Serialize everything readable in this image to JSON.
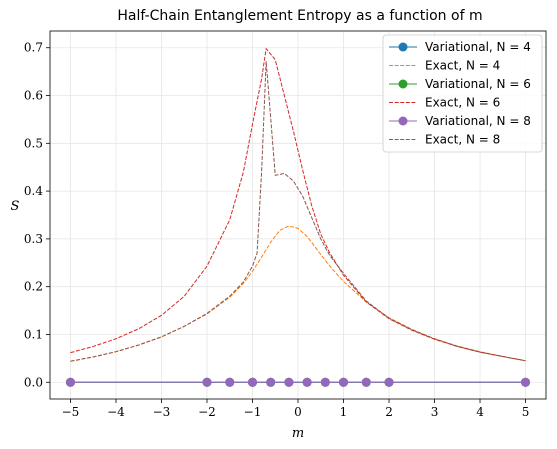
{
  "chart_data": {
    "type": "line",
    "title": "Half-Chain Entanglement Entropy as a function of m",
    "xlabel": "m",
    "ylabel": "S",
    "xlim": [
      -5.45,
      5.45
    ],
    "ylim": [
      -0.035,
      0.735
    ],
    "xticks": [
      -5,
      -4,
      -3,
      -2,
      -1,
      0,
      1,
      2,
      3,
      4,
      5
    ],
    "xtick_labels": [
      "−5",
      "−4",
      "−3",
      "−2",
      "−1",
      "0",
      "1",
      "2",
      "3",
      "4",
      "5"
    ],
    "yticks": [
      0.0,
      0.1,
      0.2,
      0.3,
      0.4,
      0.5,
      0.6,
      0.7
    ],
    "ytick_labels": [
      "0.0",
      "0.1",
      "0.2",
      "0.3",
      "0.4",
      "0.5",
      "0.6",
      "0.7"
    ],
    "grid": true,
    "legend_position": "top-right",
    "colors": {
      "blue": "#1f77b4",
      "orange": "#ff7f0e",
      "green": "#2ca02c",
      "red": "#d62728",
      "purple": "#9467bd",
      "brown": "#8c564b"
    },
    "series": [
      {
        "name": "Variational, N = 4",
        "style": "solid-marker",
        "color": "#1f77b4",
        "x": [
          -5,
          -2,
          -1.5,
          -1,
          -0.6,
          -0.2,
          0.2,
          0.6,
          1,
          1.5,
          2,
          5
        ],
        "y": [
          0,
          0,
          0,
          0,
          0,
          0,
          0,
          0,
          0,
          0,
          0,
          0
        ]
      },
      {
        "name": "Exact, N = 4",
        "style": "dashed",
        "color": "#ff7f0e",
        "x": [
          -5,
          -4.5,
          -4,
          -3.5,
          -3,
          -2.5,
          -2,
          -1.5,
          -1.2,
          -1,
          -0.8,
          -0.6,
          -0.4,
          -0.2,
          0,
          0.2,
          0.4,
          0.6,
          0.8,
          1,
          1.5,
          2,
          2.5,
          3,
          3.5,
          4,
          4.5,
          5
        ],
        "y": [
          0.044,
          0.053,
          0.064,
          0.078,
          0.095,
          0.117,
          0.143,
          0.178,
          0.207,
          0.232,
          0.262,
          0.293,
          0.318,
          0.327,
          0.322,
          0.305,
          0.28,
          0.255,
          0.232,
          0.211,
          0.168,
          0.135,
          0.111,
          0.091,
          0.076,
          0.064,
          0.054,
          0.045
        ]
      },
      {
        "name": "Variational, N = 6",
        "style": "solid-marker",
        "color": "#2ca02c",
        "x": [
          -5,
          -2,
          -1.5,
          -1,
          -0.6,
          -0.2,
          0.2,
          0.6,
          1,
          1.5,
          2,
          5
        ],
        "y": [
          0,
          0,
          0,
          0,
          0,
          0,
          0,
          0,
          0,
          0,
          0,
          0
        ]
      },
      {
        "name": "Exact, N = 6",
        "style": "dashed",
        "color": "#d62728",
        "x": [
          -5,
          -4.5,
          -4,
          -3.5,
          -3,
          -2.5,
          -2,
          -1.5,
          -1.2,
          -1,
          -0.8,
          -0.7,
          -0.5,
          -0.3,
          -0.1,
          0.1,
          0.3,
          0.5,
          0.7,
          1,
          1.5,
          2,
          2.5,
          3,
          3.5,
          4,
          4.5,
          5
        ],
        "y": [
          0.062,
          0.075,
          0.091,
          0.112,
          0.14,
          0.18,
          0.243,
          0.34,
          0.44,
          0.54,
          0.635,
          0.698,
          0.675,
          0.6,
          0.525,
          0.445,
          0.37,
          0.31,
          0.27,
          0.224,
          0.168,
          0.133,
          0.109,
          0.09,
          0.075,
          0.063,
          0.054,
          0.045
        ]
      },
      {
        "name": "Variational, N = 8",
        "style": "solid-marker",
        "color": "#9467bd",
        "x": [
          -5,
          -2,
          -1.5,
          -1,
          -0.6,
          -0.2,
          0.2,
          0.6,
          1,
          1.5,
          2,
          5
        ],
        "y": [
          0,
          0,
          0,
          0,
          0,
          0,
          0,
          0,
          0,
          0,
          0,
          0
        ]
      },
      {
        "name": "Exact, N = 8",
        "style": "dashed",
        "color": "#8c564b",
        "x": [
          -5,
          -4.5,
          -4,
          -3.5,
          -3,
          -2.5,
          -2,
          -1.5,
          -1.2,
          -1,
          -0.9,
          -0.8,
          -0.7,
          -0.5,
          -0.3,
          -0.1,
          0.1,
          0.3,
          0.5,
          0.7,
          1,
          1.5,
          2,
          2.5,
          3,
          3.5,
          4,
          4.5,
          5
        ],
        "y": [
          0.044,
          0.053,
          0.064,
          0.078,
          0.095,
          0.117,
          0.144,
          0.18,
          0.21,
          0.243,
          0.27,
          0.44,
          0.672,
          0.433,
          0.437,
          0.421,
          0.39,
          0.345,
          0.3,
          0.265,
          0.228,
          0.17,
          0.134,
          0.11,
          0.091,
          0.075,
          0.063,
          0.054,
          0.045
        ]
      }
    ]
  }
}
